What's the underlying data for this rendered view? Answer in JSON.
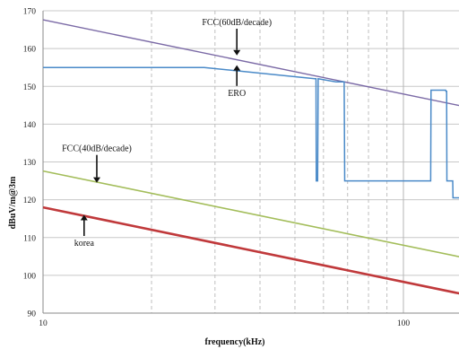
{
  "chart_data": {
    "type": "line",
    "title": "",
    "xlabel": "frequency(kHz)",
    "ylabel": "dBuV/m@3m",
    "x_scale": "log",
    "xlim": [
      10,
      150
    ],
    "ylim": [
      90,
      170
    ],
    "y_ticks": [
      "90",
      "100",
      "110",
      "120",
      "130",
      "140",
      "150",
      "160",
      "170"
    ],
    "x_tick_labels": [
      "10",
      "100"
    ],
    "grid": true,
    "legend": "none",
    "series": [
      {
        "name": "FCC(60dB/decade)",
        "color": "#7b6aa6",
        "points": [
          [
            10,
            167.6
          ],
          [
            150,
            144.5
          ]
        ]
      },
      {
        "name": "FCC(40dB/decade)",
        "color": "#a3bd5a",
        "points": [
          [
            10,
            127.6
          ],
          [
            150,
            104.5
          ]
        ]
      },
      {
        "name": "korea",
        "color": "#c0393b",
        "points": [
          [
            10,
            118.0
          ],
          [
            150,
            94.8
          ]
        ]
      },
      {
        "name": "ERO",
        "color": "#4a8ac8",
        "points": [
          [
            10,
            155
          ],
          [
            28,
            155
          ],
          [
            56.8,
            152
          ],
          [
            57.2,
            152
          ],
          [
            57.3,
            125
          ],
          [
            57.8,
            125
          ],
          [
            58,
            152
          ],
          [
            65,
            151.2
          ],
          [
            68.5,
            151.2
          ],
          [
            68.7,
            125
          ],
          [
            119,
            125
          ],
          [
            119.3,
            149
          ],
          [
            131,
            149
          ],
          [
            131.3,
            148.7
          ],
          [
            131.8,
            148.7
          ],
          [
            132,
            125
          ],
          [
            137,
            125
          ],
          [
            137.3,
            120.5
          ],
          [
            150,
            120.5
          ]
        ]
      }
    ],
    "annotations": [
      {
        "text": "FCC(60dB/decade)",
        "target": [
          34.5,
          158.2
        ],
        "label_pos": [
          34.5,
          166.2
        ]
      },
      {
        "text": "ERO",
        "target": [
          34.5,
          155.6
        ],
        "label_pos": [
          34.5,
          147.5
        ]
      },
      {
        "text": "FCC(40dB/decade)",
        "target": [
          14.1,
          124.5
        ],
        "label_pos": [
          14.1,
          132.8
        ]
      },
      {
        "text": "korea",
        "target": [
          13.0,
          116.0
        ],
        "label_pos": [
          13.0,
          107.8
        ]
      }
    ]
  }
}
